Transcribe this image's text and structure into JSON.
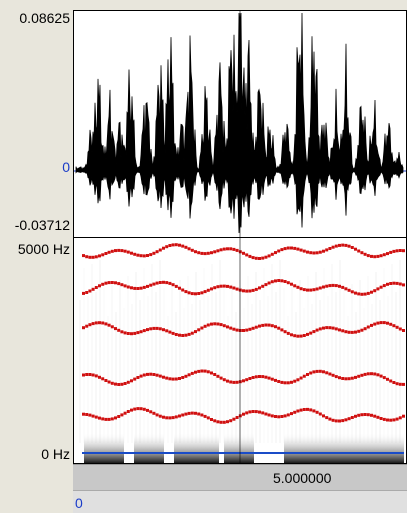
{
  "waveform": {
    "y_max_label": "0.08625",
    "y_zero_label": "0",
    "y_min_label": "-0.03712",
    "color": "#000000"
  },
  "spectrogram": {
    "y_top_label": "5000 Hz",
    "y_bottom_label": "0 Hz",
    "formant_color": "#d01010",
    "pitch_color": "#1a4cc8"
  },
  "timeline": {
    "time_label": "5.000000"
  },
  "scroll": {
    "position_label": "0"
  }
}
